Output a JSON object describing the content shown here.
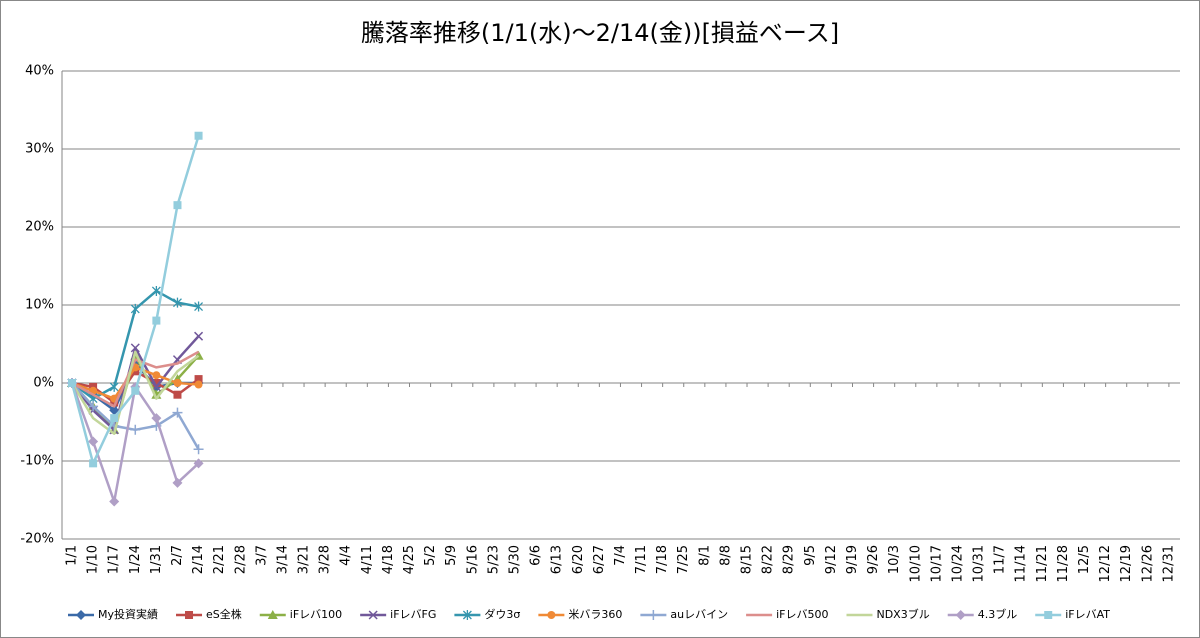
{
  "chart_data": {
    "type": "line",
    "title": "騰落率推移(1/1(水)～2/14(金))[損益ベース]",
    "categories": [
      "1/1",
      "1/10",
      "1/17",
      "1/24",
      "1/31",
      "2/7",
      "2/14",
      "2/21",
      "2/28",
      "3/7",
      "3/14",
      "3/21",
      "3/28",
      "4/4",
      "4/11",
      "4/18",
      "4/25",
      "5/2",
      "5/9",
      "5/16",
      "5/23",
      "5/30",
      "6/6",
      "6/13",
      "6/20",
      "6/27",
      "7/4",
      "7/11",
      "7/18",
      "7/25",
      "8/1",
      "8/8",
      "8/15",
      "8/22",
      "8/29",
      "9/5",
      "9/12",
      "9/19",
      "9/26",
      "10/3",
      "10/10",
      "10/17",
      "10/24",
      "10/31",
      "11/7",
      "11/14",
      "11/21",
      "11/28",
      "12/5",
      "12/12",
      "12/19",
      "12/26",
      "12/31"
    ],
    "ylim": [
      -20,
      40
    ],
    "yticks": [
      {
        "value": -20,
        "label": "-20%"
      },
      {
        "value": -10,
        "label": "-10%"
      },
      {
        "value": 0,
        "label": "0%"
      },
      {
        "value": 10,
        "label": "10%"
      },
      {
        "value": 20,
        "label": "20%"
      },
      {
        "value": 30,
        "label": "30%"
      },
      {
        "value": 40,
        "label": "40%"
      }
    ],
    "grid": true,
    "legend": "bottom",
    "series": [
      {
        "name": "My投資実績",
        "color": "#3b6aa8",
        "marker": "diamond",
        "values": [
          0,
          -1.5,
          -3.5,
          2.5,
          -0.5,
          0,
          0,
          null,
          null,
          null,
          null,
          null,
          null,
          null,
          null,
          null,
          null,
          null,
          null,
          null,
          null,
          null,
          null,
          null,
          null,
          null,
          null,
          null,
          null,
          null,
          null,
          null,
          null,
          null,
          null,
          null,
          null,
          null,
          null,
          null,
          null,
          null,
          null,
          null,
          null,
          null,
          null,
          null,
          null,
          null,
          null,
          null,
          null
        ]
      },
      {
        "name": "eS全株",
        "color": "#be4b48",
        "marker": "square",
        "values": [
          0,
          -0.5,
          -2.5,
          1.5,
          0,
          -1.5,
          0.5,
          null,
          null,
          null,
          null,
          null,
          null,
          null,
          null,
          null,
          null,
          null,
          null,
          null,
          null,
          null,
          null,
          null,
          null,
          null,
          null,
          null,
          null,
          null,
          null,
          null,
          null,
          null,
          null,
          null,
          null,
          null,
          null,
          null,
          null,
          null,
          null,
          null,
          null,
          null,
          null,
          null,
          null,
          null,
          null,
          null,
          null
        ]
      },
      {
        "name": "iFレバ100",
        "color": "#8cb047",
        "marker": "triangle",
        "values": [
          0,
          -3,
          -6,
          3.5,
          -1.5,
          0.5,
          3.5,
          null,
          null,
          null,
          null,
          null,
          null,
          null,
          null,
          null,
          null,
          null,
          null,
          null,
          null,
          null,
          null,
          null,
          null,
          null,
          null,
          null,
          null,
          null,
          null,
          null,
          null,
          null,
          null,
          null,
          null,
          null,
          null,
          null,
          null,
          null,
          null,
          null,
          null,
          null,
          null,
          null,
          null,
          null,
          null,
          null,
          null
        ]
      },
      {
        "name": "iFレバFG",
        "color": "#71589a",
        "marker": "x",
        "values": [
          0,
          -3.5,
          -6,
          4.5,
          -0.5,
          3,
          6,
          null,
          null,
          null,
          null,
          null,
          null,
          null,
          null,
          null,
          null,
          null,
          null,
          null,
          null,
          null,
          null,
          null,
          null,
          null,
          null,
          null,
          null,
          null,
          null,
          null,
          null,
          null,
          null,
          null,
          null,
          null,
          null,
          null,
          null,
          null,
          null,
          null,
          null,
          null,
          null,
          null,
          null,
          null,
          null,
          null,
          null
        ]
      },
      {
        "name": "ダウ3σ",
        "color": "#3596ae",
        "marker": "star",
        "values": [
          0,
          -2,
          -0.5,
          9.5,
          11.8,
          10.3,
          9.8,
          null,
          null,
          null,
          null,
          null,
          null,
          null,
          null,
          null,
          null,
          null,
          null,
          null,
          null,
          null,
          null,
          null,
          null,
          null,
          null,
          null,
          null,
          null,
          null,
          null,
          null,
          null,
          null,
          null,
          null,
          null,
          null,
          null,
          null,
          null,
          null,
          null,
          null,
          null,
          null,
          null,
          null,
          null,
          null,
          null,
          null
        ]
      },
      {
        "name": "米バラ360",
        "color": "#f08a36",
        "marker": "circle",
        "values": [
          0,
          -1,
          -2,
          2,
          1,
          0,
          -0.2,
          null,
          null,
          null,
          null,
          null,
          null,
          null,
          null,
          null,
          null,
          null,
          null,
          null,
          null,
          null,
          null,
          null,
          null,
          null,
          null,
          null,
          null,
          null,
          null,
          null,
          null,
          null,
          null,
          null,
          null,
          null,
          null,
          null,
          null,
          null,
          null,
          null,
          null,
          null,
          null,
          null,
          null,
          null,
          null,
          null,
          null
        ]
      },
      {
        "name": "auレバイン",
        "color": "#8fa8d2",
        "marker": "plus",
        "values": [
          0,
          -3,
          -5.5,
          -6,
          -5.5,
          -3.8,
          -8.5,
          null,
          null,
          null,
          null,
          null,
          null,
          null,
          null,
          null,
          null,
          null,
          null,
          null,
          null,
          null,
          null,
          null,
          null,
          null,
          null,
          null,
          null,
          null,
          null,
          null,
          null,
          null,
          null,
          null,
          null,
          null,
          null,
          null,
          null,
          null,
          null,
          null,
          null,
          null,
          null,
          null,
          null,
          null,
          null,
          null,
          null
        ]
      },
      {
        "name": "iFレバ500",
        "color": "#dc8e8c",
        "marker": "none",
        "values": [
          0,
          -1.5,
          -3,
          3,
          2,
          2.5,
          4,
          null,
          null,
          null,
          null,
          null,
          null,
          null,
          null,
          null,
          null,
          null,
          null,
          null,
          null,
          null,
          null,
          null,
          null,
          null,
          null,
          null,
          null,
          null,
          null,
          null,
          null,
          null,
          null,
          null,
          null,
          null,
          null,
          null,
          null,
          null,
          null,
          null,
          null,
          null,
          null,
          null,
          null,
          null,
          null,
          null,
          null
        ]
      },
      {
        "name": "NDX3ブル",
        "color": "#c2d69a",
        "marker": "none",
        "values": [
          0,
          -4.5,
          -6.5,
          4,
          -2,
          1.5,
          3.5,
          null,
          null,
          null,
          null,
          null,
          null,
          null,
          null,
          null,
          null,
          null,
          null,
          null,
          null,
          null,
          null,
          null,
          null,
          null,
          null,
          null,
          null,
          null,
          null,
          null,
          null,
          null,
          null,
          null,
          null,
          null,
          null,
          null,
          null,
          null,
          null,
          null,
          null,
          null,
          null,
          null,
          null,
          null,
          null,
          null,
          null
        ]
      },
      {
        "name": "4.3ブル",
        "color": "#b09fc6",
        "marker": "diamond",
        "values": [
          0,
          -7.5,
          -15.2,
          -0.5,
          -4.5,
          -12.8,
          -10.3,
          null,
          null,
          null,
          null,
          null,
          null,
          null,
          null,
          null,
          null,
          null,
          null,
          null,
          null,
          null,
          null,
          null,
          null,
          null,
          null,
          null,
          null,
          null,
          null,
          null,
          null,
          null,
          null,
          null,
          null,
          null,
          null,
          null,
          null,
          null,
          null,
          null,
          null,
          null,
          null,
          null,
          null,
          null,
          null,
          null,
          null
        ]
      },
      {
        "name": "iFレバAT",
        "color": "#93cddd",
        "marker": "square",
        "values": [
          0,
          -10.3,
          -4.5,
          -1,
          8,
          22.8,
          31.7,
          null,
          null,
          null,
          null,
          null,
          null,
          null,
          null,
          null,
          null,
          null,
          null,
          null,
          null,
          null,
          null,
          null,
          null,
          null,
          null,
          null,
          null,
          null,
          null,
          null,
          null,
          null,
          null,
          null,
          null,
          null,
          null,
          null,
          null,
          null,
          null,
          null,
          null,
          null,
          null,
          null,
          null,
          null,
          null,
          null,
          null
        ]
      }
    ]
  }
}
